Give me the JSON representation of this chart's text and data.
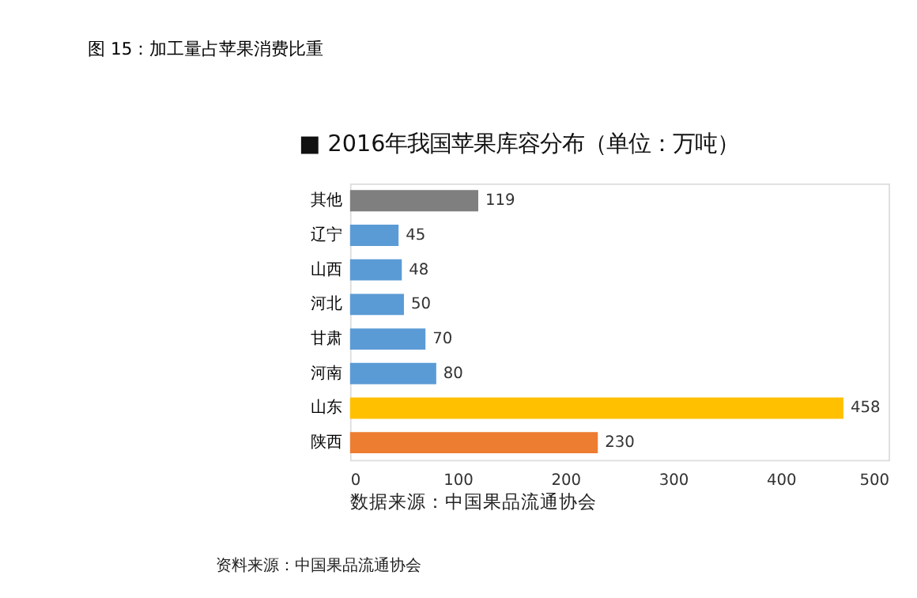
{
  "chart_data": {
    "type": "bar",
    "orientation": "horizontal",
    "title": "图 15：加工量占苹果消费比重",
    "subtitle": "■ 2016年我国苹果库容分布（单位：万吨）",
    "categories": [
      "其他",
      "辽宁",
      "山西",
      "河北",
      "甘肃",
      "河南",
      "山东",
      "陕西"
    ],
    "values": [
      119,
      45,
      48,
      50,
      70,
      80,
      458,
      230
    ],
    "colors": [
      "#7f7f7f",
      "#5b9bd5",
      "#5b9bd5",
      "#5b9bd5",
      "#5b9bd5",
      "#5b9bd5",
      "#ffc000",
      "#ed7d31"
    ],
    "xlim": [
      0,
      500
    ],
    "xticks": [
      0,
      100,
      200,
      300,
      400,
      500
    ],
    "grid": false,
    "data_labels": true,
    "annotations": [
      "数据来源：中国果品流通协会",
      "资料来源：中国果品流通协会"
    ]
  }
}
